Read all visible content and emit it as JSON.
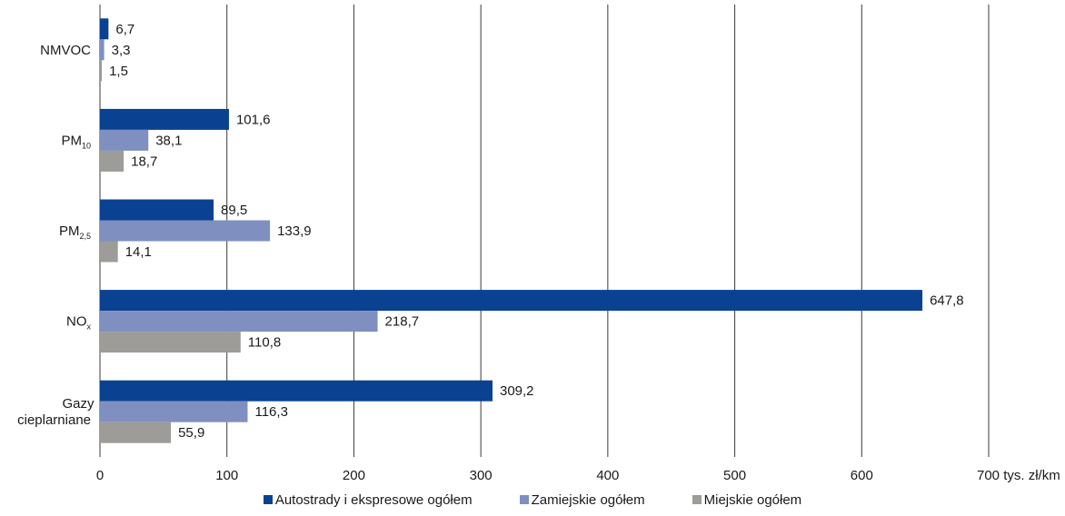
{
  "chart_data": {
    "type": "bar",
    "orientation": "horizontal",
    "title": "",
    "categories": [
      "NMVOC",
      "PM10",
      "PM2.5",
      "NOx",
      "Gazy cieplarniane"
    ],
    "category_labels": [
      {
        "main": "NMVOC",
        "sub": ""
      },
      {
        "main": "PM",
        "sub": "10"
      },
      {
        "main": "PM",
        "sub": "2,5"
      },
      {
        "main": "NO",
        "sub": "x"
      },
      {
        "main": "Gazy",
        "main2": "cieplarniane",
        "sub": ""
      }
    ],
    "series": [
      {
        "name": "Autostrady i ekspresowe ogółem",
        "color": "#0b4191",
        "values": [
          6.7,
          101.6,
          89.5,
          647.8,
          309.2
        ],
        "labels": [
          "6,7",
          "101,6",
          "89,5",
          "647,8",
          "309,2"
        ]
      },
      {
        "name": "Zamiejskie ogółem",
        "color": "#7f8fc0",
        "values": [
          3.3,
          38.1,
          133.9,
          218.7,
          116.3
        ],
        "labels": [
          "3,3",
          "38,1",
          "133,9",
          "218,7",
          "116,3"
        ]
      },
      {
        "name": "Miejskie ogółem",
        "color": "#9d9c98",
        "values": [
          1.5,
          18.7,
          14.1,
          110.8,
          55.9
        ],
        "labels": [
          "1,5",
          "18,7",
          "14,1",
          "110,8",
          "55,9"
        ]
      }
    ],
    "xlim": [
      0,
      700
    ],
    "xticks": [
      "0",
      "100",
      "200",
      "300",
      "400",
      "500",
      "600",
      "700"
    ],
    "xunit": "tys. zł/km",
    "grid": "vertical",
    "legend_position": "bottom"
  }
}
